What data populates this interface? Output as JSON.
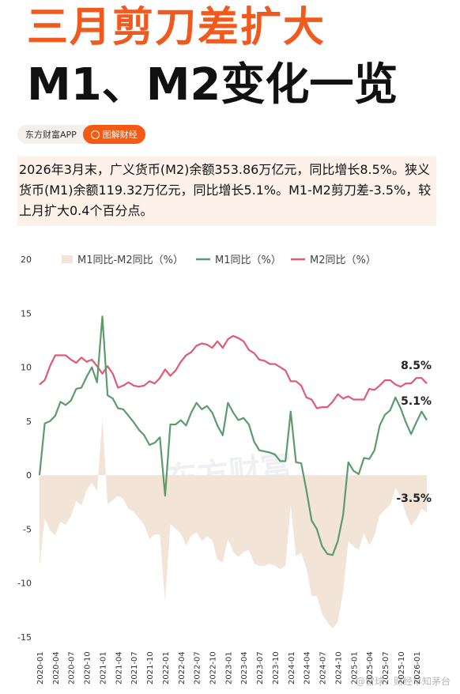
{
  "header": {
    "title": "三月剪刀差扩大",
    "subtitle": "M1、M2变化一览",
    "tag_app": "东方财富APP",
    "tag_button": "图解财经"
  },
  "summary": {
    "text": "2026年3月末，广义货币(M2)余额353.86万亿元，同比增长8.5%。狭义货币(M1)余额119.32万亿元，同比增长5.1%。M1-M2剪刀差-3.5%，较上月扩大0.4个百分点。"
  },
  "watermark": "东方财富",
  "footer_text": "@雪球：财经早知茅台",
  "colors": {
    "accent": "#f05a1e",
    "m1": "#5d9a6e",
    "m2": "#e05a76",
    "gap": "#f2e4d6"
  },
  "chart_data": {
    "type": "line",
    "legend": [
      "M1同比-M2同比（%）",
      "M1同比（%）",
      "M2同比（%）"
    ],
    "legend_position": "top",
    "ylim": [
      -15,
      20
    ],
    "yticks": [
      -15,
      -10,
      -5,
      0,
      5,
      10,
      15,
      20
    ],
    "xticks": [
      "2020-01",
      "2020-04",
      "2020-07",
      "2020-10",
      "2021-01",
      "2021-04",
      "2021-07",
      "2021-10",
      "2022-01",
      "2022-04",
      "2022-07",
      "2022-10",
      "2023-01",
      "2023-04",
      "2023-07",
      "2023-10",
      "2024-01",
      "2024-04",
      "2024-07",
      "2024-10",
      "2025-01",
      "2025-04",
      "2025-07",
      "2025-10",
      "2026-01"
    ],
    "x": [
      "2020-01",
      "2020-02",
      "2020-03",
      "2020-04",
      "2020-05",
      "2020-06",
      "2020-07",
      "2020-08",
      "2020-09",
      "2020-10",
      "2020-11",
      "2020-12",
      "2021-01",
      "2021-02",
      "2021-03",
      "2021-04",
      "2021-05",
      "2021-06",
      "2021-07",
      "2021-08",
      "2021-09",
      "2021-10",
      "2021-11",
      "2021-12",
      "2022-01",
      "2022-02",
      "2022-03",
      "2022-04",
      "2022-05",
      "2022-06",
      "2022-07",
      "2022-08",
      "2022-09",
      "2022-10",
      "2022-11",
      "2022-12",
      "2023-01",
      "2023-02",
      "2023-03",
      "2023-04",
      "2023-05",
      "2023-06",
      "2023-07",
      "2023-08",
      "2023-09",
      "2023-10",
      "2023-11",
      "2023-12",
      "2024-01",
      "2024-02",
      "2024-03",
      "2024-04",
      "2024-05",
      "2024-06",
      "2024-07",
      "2024-08",
      "2024-09",
      "2024-10",
      "2024-11",
      "2024-12",
      "2025-01",
      "2025-02",
      "2025-03",
      "2025-04",
      "2025-05",
      "2025-06",
      "2025-07",
      "2025-08",
      "2025-09",
      "2025-10",
      "2025-11",
      "2025-12",
      "2026-01",
      "2026-02",
      "2026-03"
    ],
    "series": [
      {
        "name": "M1同比（%）",
        "values": [
          0.0,
          4.8,
          5.0,
          5.5,
          6.8,
          6.5,
          6.9,
          8.0,
          8.1,
          9.1,
          10.0,
          8.6,
          14.7,
          7.4,
          7.1,
          6.2,
          6.1,
          5.5,
          4.9,
          4.2,
          3.7,
          2.8,
          3.0,
          3.5,
          -1.9,
          4.7,
          4.7,
          5.1,
          4.6,
          5.8,
          6.7,
          6.1,
          6.4,
          5.8,
          4.6,
          3.7,
          6.7,
          5.8,
          5.1,
          5.3,
          4.7,
          3.1,
          2.3,
          2.2,
          2.1,
          1.9,
          1.3,
          1.3,
          5.9,
          1.2,
          1.1,
          -1.4,
          -4.2,
          -5.0,
          -6.6,
          -7.3,
          -7.4,
          -6.1,
          -3.7,
          1.2,
          0.4,
          0.1,
          1.6,
          1.5,
          2.3,
          4.6,
          5.6,
          6.0,
          7.2,
          6.2,
          4.9,
          3.8,
          4.9,
          5.9,
          5.1
        ]
      },
      {
        "name": "M2同比（%）",
        "values": [
          8.4,
          8.8,
          10.1,
          11.1,
          11.1,
          11.1,
          10.7,
          10.4,
          10.9,
          10.5,
          10.7,
          10.1,
          9.4,
          10.1,
          9.4,
          8.1,
          8.3,
          8.6,
          8.3,
          8.2,
          8.3,
          8.7,
          8.5,
          9.0,
          9.8,
          9.2,
          9.7,
          10.5,
          11.1,
          11.4,
          12.0,
          12.2,
          12.1,
          11.8,
          12.4,
          11.8,
          12.6,
          12.9,
          12.7,
          12.4,
          11.6,
          11.3,
          10.7,
          10.6,
          10.3,
          10.3,
          10.0,
          9.7,
          8.7,
          8.7,
          8.3,
          7.2,
          7.0,
          6.2,
          6.3,
          6.3,
          6.8,
          7.5,
          7.1,
          7.3,
          7.0,
          7.0,
          7.0,
          8.0,
          7.9,
          8.3,
          8.8,
          8.8,
          8.4,
          8.2,
          8.5,
          8.5,
          9.0,
          9.0,
          8.5
        ]
      },
      {
        "name": "M1同比-M2同比（%）",
        "values": [
          -8.4,
          -4.0,
          -5.1,
          -5.6,
          -4.3,
          -4.6,
          -3.8,
          -2.4,
          -2.8,
          -1.4,
          -0.7,
          -1.5,
          5.3,
          -2.7,
          -2.3,
          -1.9,
          -2.2,
          -3.1,
          -3.4,
          -4.0,
          -4.6,
          -5.9,
          -5.5,
          -5.5,
          -11.7,
          -4.5,
          -5.0,
          -5.4,
          -6.5,
          -5.6,
          -5.3,
          -6.1,
          -5.7,
          -6.0,
          -7.8,
          -8.1,
          -5.9,
          -7.1,
          -7.6,
          -7.1,
          -6.9,
          -8.2,
          -8.4,
          -8.4,
          -8.2,
          -8.4,
          -8.7,
          -8.4,
          -2.8,
          -7.5,
          -7.2,
          -8.6,
          -11.2,
          -11.2,
          -12.9,
          -13.6,
          -14.2,
          -13.6,
          -10.8,
          -6.1,
          -6.6,
          -6.9,
          -5.4,
          -6.5,
          -5.6,
          -3.7,
          -3.2,
          -2.8,
          -1.2,
          -2.0,
          -3.6,
          -4.7,
          -4.1,
          -3.1,
          -3.5
        ]
      }
    ],
    "annotations": {
      "m2_last": "8.5%",
      "m1_last": "5.1%",
      "gap_last": "-3.5%"
    }
  }
}
